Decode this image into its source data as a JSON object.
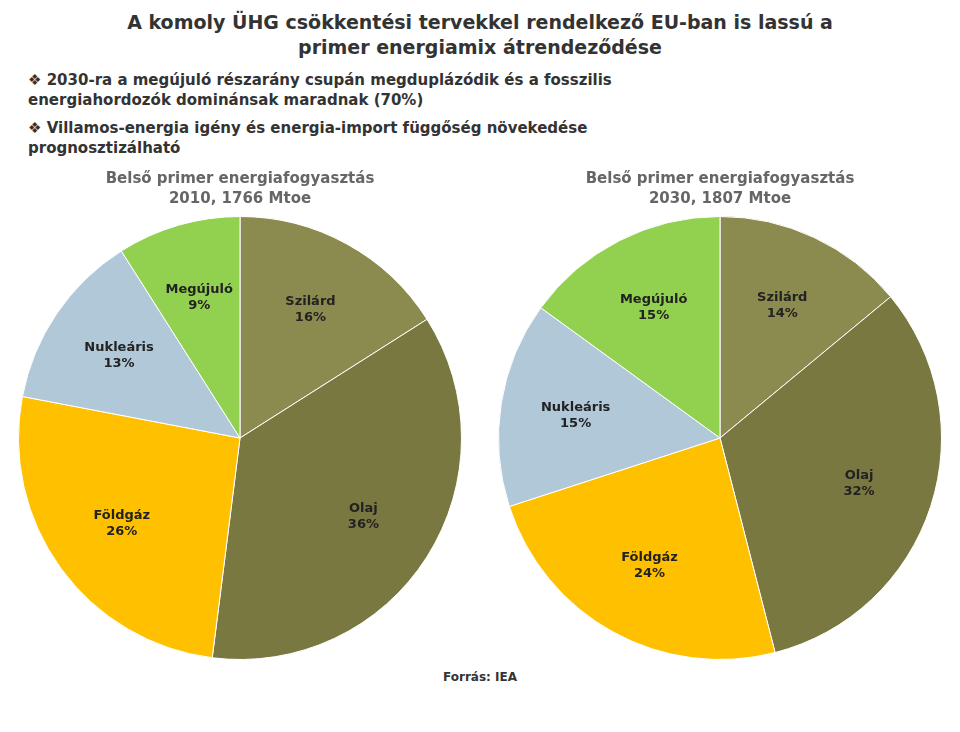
{
  "title": [
    "A komoly ÜHG csökkentési tervekkel rendelkező EU-ban is lassú a",
    "primer energiamix átrendeződése"
  ],
  "annotations": [
    [
      "❖ 2030-ra a megújuló részarány csupán megduplázódik és a fosszilis",
      "energiahordozók dominánsak maradnak (70%)"
    ],
    [
      "❖ Villamos-energia igény és energia-import függőség növekedése",
      "prognosztizálható"
    ]
  ],
  "source": "Forrás: IEA",
  "chart_data": [
    {
      "type": "pie",
      "title": "Belső primer energiafogyasztás",
      "subtitle": "2010, 1766 Mtoe",
      "categories": [
        "Szilárd",
        "Olaj",
        "Földgáz",
        "Nukleáris",
        "Megújuló"
      ],
      "values": [
        16,
        36,
        26,
        13,
        9
      ],
      "value_labels": [
        "16%",
        "36%",
        "26%",
        "13%",
        "9%"
      ],
      "colors": [
        "#8B8B50",
        "#787840",
        "#FFC000",
        "#B0C8D8",
        "#92D050"
      ],
      "data_labels": true
    },
    {
      "type": "pie",
      "title": "Belső primer energiafogyasztás",
      "subtitle": "2030, 1807 Mtoe",
      "categories": [
        "Szilárd",
        "Olaj",
        "Földgáz",
        "Nukleáris",
        "Megújuló"
      ],
      "values": [
        14,
        32,
        24,
        15,
        15
      ],
      "value_labels": [
        "14%",
        "32%",
        "24%",
        "15%",
        "15%"
      ],
      "colors": [
        "#8B8B50",
        "#787840",
        "#FFC000",
        "#B0C8D8",
        "#92D050"
      ],
      "data_labels": true
    }
  ]
}
